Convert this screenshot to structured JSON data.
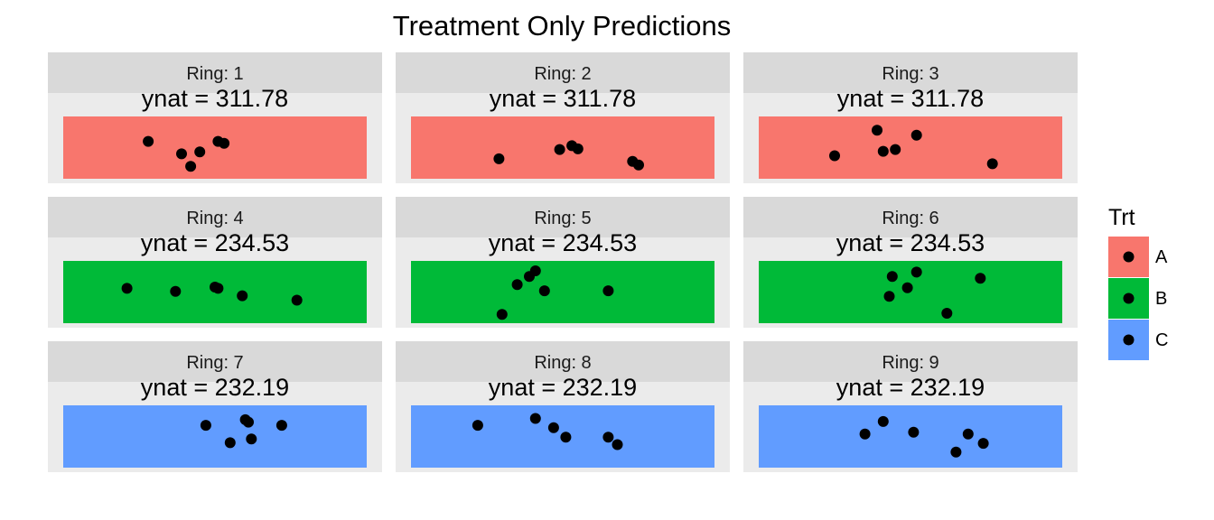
{
  "chart_data": {
    "type": "scatter",
    "title": "Treatment Only Predictions",
    "facet_prefix": "Ring: ",
    "legend": {
      "title": "Trt",
      "position": "right",
      "entries": [
        {
          "label": "A",
          "color": "#F8766D"
        },
        {
          "label": "B",
          "color": "#00BA38"
        },
        {
          "label": "C",
          "color": "#619CFF"
        }
      ]
    },
    "x_range": [
      0,
      1
    ],
    "y_range": [
      0,
      1
    ],
    "panels": [
      {
        "ring": "1",
        "trt": "A",
        "annotation": "ynat = 311.78",
        "points": [
          {
            "x": 0.28,
            "y": 0.6
          },
          {
            "x": 0.39,
            "y": 0.4
          },
          {
            "x": 0.42,
            "y": 0.2
          },
          {
            "x": 0.45,
            "y": 0.43
          },
          {
            "x": 0.51,
            "y": 0.6
          },
          {
            "x": 0.53,
            "y": 0.57
          }
        ]
      },
      {
        "ring": "2",
        "trt": "A",
        "annotation": "ynat = 311.78",
        "points": [
          {
            "x": 0.29,
            "y": 0.32
          },
          {
            "x": 0.49,
            "y": 0.47
          },
          {
            "x": 0.53,
            "y": 0.53
          },
          {
            "x": 0.55,
            "y": 0.48
          },
          {
            "x": 0.73,
            "y": 0.28
          },
          {
            "x": 0.75,
            "y": 0.22
          }
        ]
      },
      {
        "ring": "3",
        "trt": "A",
        "annotation": "ynat = 311.78",
        "points": [
          {
            "x": 0.25,
            "y": 0.37
          },
          {
            "x": 0.39,
            "y": 0.78
          },
          {
            "x": 0.41,
            "y": 0.44
          },
          {
            "x": 0.45,
            "y": 0.47
          },
          {
            "x": 0.52,
            "y": 0.7
          },
          {
            "x": 0.77,
            "y": 0.24
          }
        ]
      },
      {
        "ring": "4",
        "trt": "B",
        "annotation": "ynat = 234.53",
        "points": [
          {
            "x": 0.21,
            "y": 0.56
          },
          {
            "x": 0.37,
            "y": 0.51
          },
          {
            "x": 0.5,
            "y": 0.58
          },
          {
            "x": 0.51,
            "y": 0.56
          },
          {
            "x": 0.59,
            "y": 0.44
          },
          {
            "x": 0.77,
            "y": 0.37
          }
        ]
      },
      {
        "ring": "5",
        "trt": "B",
        "annotation": "ynat = 234.53",
        "points": [
          {
            "x": 0.3,
            "y": 0.14
          },
          {
            "x": 0.35,
            "y": 0.62
          },
          {
            "x": 0.39,
            "y": 0.75
          },
          {
            "x": 0.41,
            "y": 0.84
          },
          {
            "x": 0.44,
            "y": 0.52
          },
          {
            "x": 0.65,
            "y": 0.52
          }
        ]
      },
      {
        "ring": "6",
        "trt": "B",
        "annotation": "ynat = 234.53",
        "points": [
          {
            "x": 0.43,
            "y": 0.43
          },
          {
            "x": 0.44,
            "y": 0.75
          },
          {
            "x": 0.49,
            "y": 0.57
          },
          {
            "x": 0.52,
            "y": 0.82
          },
          {
            "x": 0.62,
            "y": 0.16
          },
          {
            "x": 0.73,
            "y": 0.72
          }
        ]
      },
      {
        "ring": "7",
        "trt": "C",
        "annotation": "ynat = 232.19",
        "points": [
          {
            "x": 0.47,
            "y": 0.68
          },
          {
            "x": 0.55,
            "y": 0.4
          },
          {
            "x": 0.6,
            "y": 0.77
          },
          {
            "x": 0.61,
            "y": 0.73
          },
          {
            "x": 0.62,
            "y": 0.46
          },
          {
            "x": 0.72,
            "y": 0.68
          }
        ]
      },
      {
        "ring": "8",
        "trt": "C",
        "annotation": "ynat = 232.19",
        "points": [
          {
            "x": 0.22,
            "y": 0.68
          },
          {
            "x": 0.41,
            "y": 0.79
          },
          {
            "x": 0.47,
            "y": 0.64
          },
          {
            "x": 0.51,
            "y": 0.49
          },
          {
            "x": 0.65,
            "y": 0.49
          },
          {
            "x": 0.68,
            "y": 0.37
          }
        ]
      },
      {
        "ring": "9",
        "trt": "C",
        "annotation": "ynat = 232.19",
        "points": [
          {
            "x": 0.35,
            "y": 0.54
          },
          {
            "x": 0.41,
            "y": 0.74
          },
          {
            "x": 0.51,
            "y": 0.57
          },
          {
            "x": 0.65,
            "y": 0.25
          },
          {
            "x": 0.69,
            "y": 0.54
          },
          {
            "x": 0.74,
            "y": 0.39
          }
        ]
      }
    ]
  }
}
